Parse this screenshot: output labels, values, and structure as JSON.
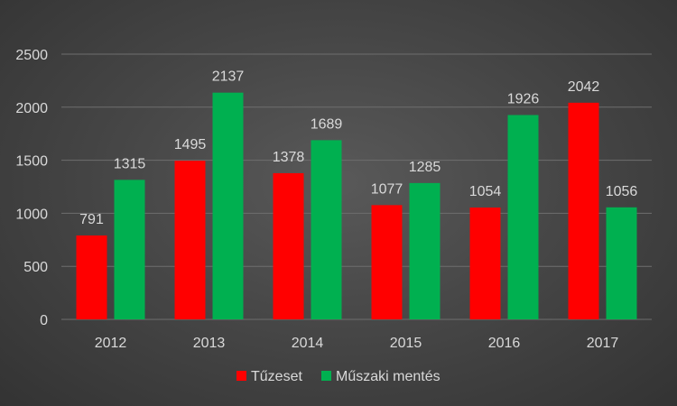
{
  "chart_data": {
    "type": "bar",
    "title": "",
    "xlabel": "",
    "ylabel": "",
    "categories": [
      "2012",
      "2013",
      "2014",
      "2015",
      "2016",
      "2017"
    ],
    "series": [
      {
        "name": "Tűzeset",
        "values": [
          791,
          1495,
          1378,
          1077,
          1054,
          2042
        ],
        "color": "#ff0000"
      },
      {
        "name": "Műszaki mentés",
        "values": [
          1315,
          2137,
          1689,
          1285,
          1926,
          1056
        ],
        "color": "#00b050"
      }
    ],
    "ylim": [
      0,
      2500
    ],
    "yticks": [
      0,
      500,
      1000,
      1500,
      2000,
      2500
    ],
    "grid": true,
    "legend_position": "bottom",
    "data_labels": true
  },
  "colors": {
    "gridline": "#6e6e6e",
    "text": "#d9d9d9"
  }
}
